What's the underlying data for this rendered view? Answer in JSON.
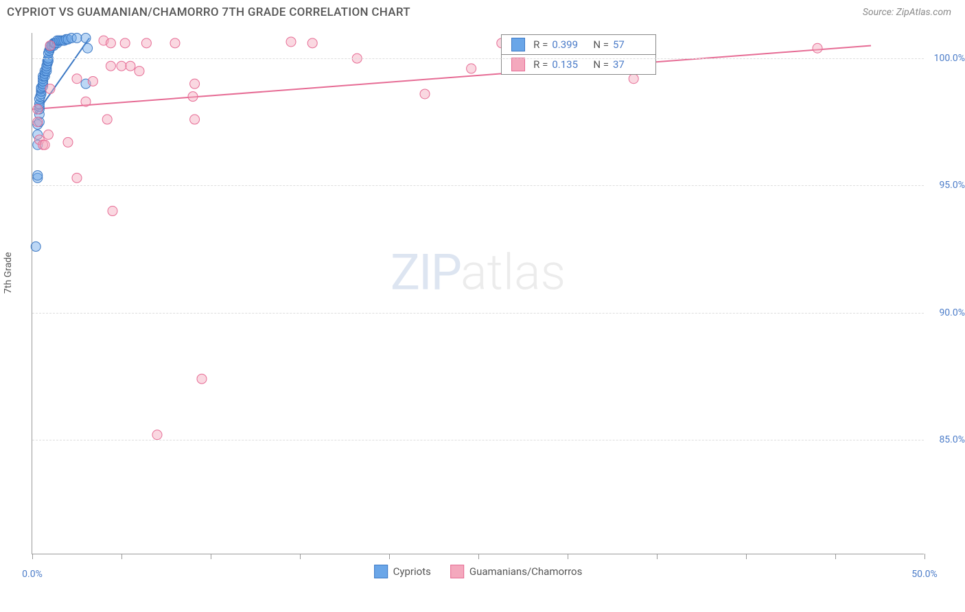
{
  "title": "CYPRIOT VS GUAMANIAN/CHAMORRO 7TH GRADE CORRELATION CHART",
  "source": "Source: ZipAtlas.com",
  "ylabel": "7th Grade",
  "watermark": {
    "part1": "ZIP",
    "part2": "atlas"
  },
  "chart": {
    "type": "scatter",
    "xlim": [
      0.0,
      50.0
    ],
    "ylim": [
      80.5,
      101.0
    ],
    "xtick_positions": [
      0.0,
      5.0,
      10.0,
      15.0,
      20.0,
      25.0,
      30.0,
      35.0,
      40.0,
      45.0,
      50.0
    ],
    "xtick_labels": {
      "0": "0.0%",
      "50": "50.0%"
    },
    "ytick_positions": [
      85.0,
      90.0,
      95.0,
      100.0
    ],
    "ytick_labels": [
      "85.0%",
      "90.0%",
      "95.0%",
      "100.0%"
    ],
    "background_color": "#ffffff",
    "grid_color": "#dddddd",
    "axis_color": "#999999",
    "label_color": "#555555",
    "tick_label_color": "#4a7bc8",
    "marker_radius": 7,
    "marker_opacity": 0.45,
    "line_width": 2
  },
  "series": [
    {
      "name": "Cypriots",
      "color_fill": "#6aa6e8",
      "color_stroke": "#3b78c4",
      "R": "0.399",
      "N": "57",
      "points": [
        [
          0.2,
          92.6
        ],
        [
          0.3,
          95.3
        ],
        [
          0.3,
          95.4
        ],
        [
          0.3,
          96.6
        ],
        [
          0.3,
          97.0
        ],
        [
          0.3,
          97.4
        ],
        [
          0.4,
          97.5
        ],
        [
          0.4,
          97.8
        ],
        [
          0.4,
          98.0
        ],
        [
          0.4,
          98.1
        ],
        [
          0.4,
          98.2
        ],
        [
          0.4,
          98.4
        ],
        [
          0.45,
          98.5
        ],
        [
          0.5,
          98.6
        ],
        [
          0.5,
          98.7
        ],
        [
          0.5,
          98.8
        ],
        [
          0.5,
          98.85
        ],
        [
          0.6,
          98.9
        ],
        [
          0.6,
          99.0
        ],
        [
          0.6,
          99.1
        ],
        [
          0.6,
          99.2
        ],
        [
          0.6,
          99.3
        ],
        [
          0.7,
          99.3
        ],
        [
          0.7,
          99.4
        ],
        [
          0.7,
          99.5
        ],
        [
          0.8,
          99.5
        ],
        [
          0.8,
          99.6
        ],
        [
          0.8,
          99.7
        ],
        [
          0.85,
          99.8
        ],
        [
          0.85,
          99.9
        ],
        [
          0.9,
          99.9
        ],
        [
          0.9,
          100.0
        ],
        [
          0.9,
          100.2
        ],
        [
          0.95,
          100.3
        ],
        [
          0.95,
          100.3
        ],
        [
          1.0,
          100.4
        ],
        [
          1.0,
          100.4
        ],
        [
          1.0,
          100.47
        ],
        [
          1.1,
          100.5
        ],
        [
          1.1,
          100.5
        ],
        [
          1.2,
          100.5
        ],
        [
          1.2,
          100.6
        ],
        [
          1.25,
          100.6
        ],
        [
          1.3,
          100.6
        ],
        [
          1.4,
          100.6
        ],
        [
          1.4,
          100.7
        ],
        [
          1.5,
          100.7
        ],
        [
          1.6,
          100.7
        ],
        [
          1.7,
          100.7
        ],
        [
          1.8,
          100.7
        ],
        [
          1.9,
          100.75
        ],
        [
          2.0,
          100.75
        ],
        [
          2.2,
          100.8
        ],
        [
          2.5,
          100.8
        ],
        [
          3.0,
          100.8
        ],
        [
          3.0,
          99.0
        ],
        [
          3.1,
          100.4
        ]
      ],
      "trend": {
        "x1": 0.2,
        "y1": 97.8,
        "x2": 3.2,
        "y2": 100.8
      }
    },
    {
      "name": "Guamanians/Chamorros",
      "color_fill": "#f4a8bd",
      "color_stroke": "#e66b94",
      "R": "0.135",
      "N": "37",
      "points": [
        [
          0.3,
          97.5
        ],
        [
          0.3,
          98.0
        ],
        [
          0.4,
          96.8
        ],
        [
          0.6,
          96.6
        ],
        [
          0.7,
          96.6
        ],
        [
          0.9,
          97.0
        ],
        [
          1.0,
          98.8
        ],
        [
          1.0,
          100.5
        ],
        [
          2.0,
          96.7
        ],
        [
          2.5,
          99.2
        ],
        [
          2.5,
          95.3
        ],
        [
          3.0,
          98.3
        ],
        [
          3.4,
          99.1
        ],
        [
          4.0,
          100.7
        ],
        [
          4.2,
          97.6
        ],
        [
          4.4,
          99.7
        ],
        [
          4.4,
          100.6
        ],
        [
          4.5,
          94.0
        ],
        [
          5.0,
          99.7
        ],
        [
          5.2,
          100.6
        ],
        [
          5.5,
          99.7
        ],
        [
          6.0,
          99.5
        ],
        [
          6.4,
          100.6
        ],
        [
          7.0,
          85.2
        ],
        [
          8.0,
          100.6
        ],
        [
          9.0,
          98.5
        ],
        [
          9.1,
          99.0
        ],
        [
          9.1,
          97.6
        ],
        [
          9.5,
          87.4
        ],
        [
          14.5,
          100.65
        ],
        [
          15.7,
          100.6
        ],
        [
          18.2,
          100.0
        ],
        [
          22.0,
          98.6
        ],
        [
          24.6,
          99.6
        ],
        [
          26.3,
          100.6
        ],
        [
          33.7,
          99.2
        ],
        [
          44.0,
          100.4
        ]
      ],
      "trend": {
        "x1": 0.0,
        "y1": 98.0,
        "x2": 47.0,
        "y2": 100.5
      }
    }
  ],
  "legend_stats": {
    "r_label": "R =",
    "n_label": "N ="
  }
}
